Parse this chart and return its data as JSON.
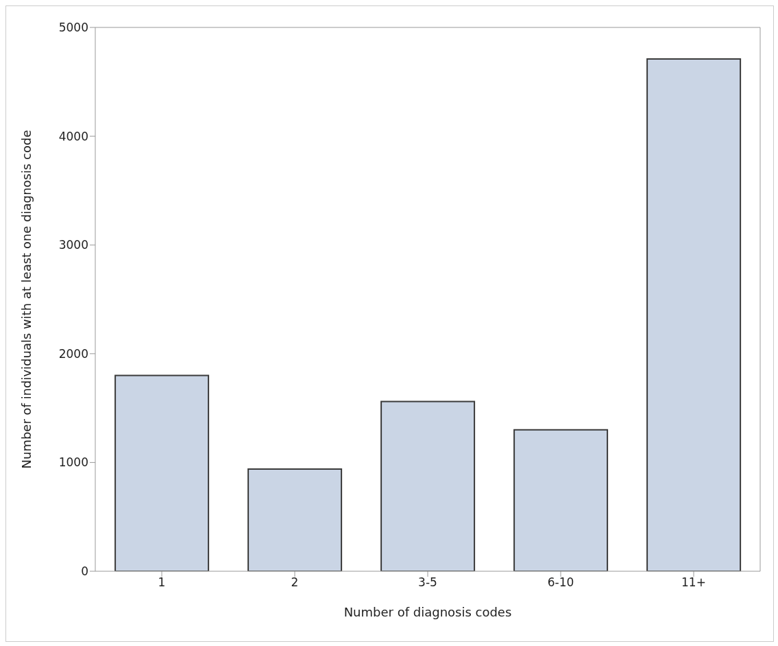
{
  "chart_data": {
    "type": "bar",
    "xlabel": "Number of diagnosis codes",
    "ylabel": "Number of individuals with at least one diagnosis code",
    "categories": [
      "1",
      "2",
      "3-5",
      "6-10",
      "11+"
    ],
    "values": [
      1800,
      940,
      1560,
      1300,
      4710
    ],
    "color": "#cad5e5",
    "ylim": [
      0,
      5000
    ],
    "yticks": [
      0,
      1000,
      2000,
      3000,
      4000,
      5000
    ],
    "grid": false
  }
}
